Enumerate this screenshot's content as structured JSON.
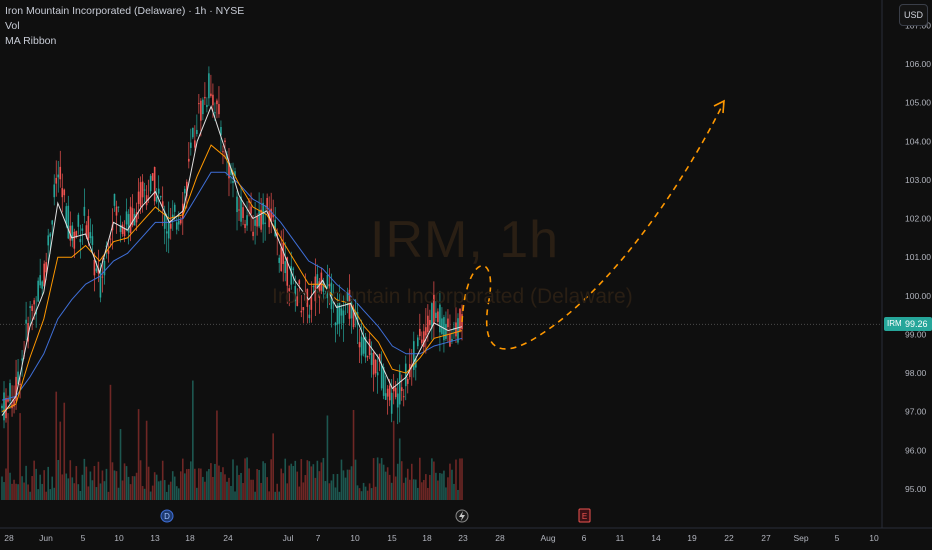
{
  "legend": {
    "title": "Iron Mountain Incorporated (Delaware) · 1h · NYSE",
    "volume": "Vol",
    "ma": "MA Ribbon"
  },
  "currency": "USD",
  "watermark": {
    "symbol": "IRM, 1h",
    "name": "Iron Mountain Incorporated (Delaware)"
  },
  "last_price": {
    "symbol": "IRM",
    "value": "99.26"
  },
  "colors": {
    "up": "#26a69a",
    "down": "#ef5350",
    "ma_fast": "#e0e0e0",
    "ma_mid": "#ff9800",
    "ma_slow": "#3f6fd8",
    "projection": "#ff9800"
  },
  "icons": {
    "dividend_marker": "D",
    "earnings_marker": "E",
    "flash_marker": "lightning-icon"
  },
  "chart_data": {
    "type": "line",
    "ylim": [
      94.6,
      107.2
    ],
    "y_ticks": [
      "95.00",
      "96.00",
      "97.00",
      "98.00",
      "99.00",
      "100.00",
      "101.00",
      "102.00",
      "103.00",
      "104.00",
      "105.00",
      "106.00",
      "107.00"
    ],
    "y_tick_values": [
      95,
      96,
      97,
      98,
      99,
      100,
      101,
      102,
      103,
      104,
      105,
      106,
      107
    ],
    "x_ticks": [
      "28",
      "Jun",
      "5",
      "10",
      "13",
      "18",
      "24",
      "Jul",
      "7",
      "10",
      "15",
      "18",
      "23",
      "28",
      "Aug",
      "6",
      "11",
      "14",
      "19",
      "22",
      "27",
      "Sep",
      "5",
      "10"
    ],
    "price_path": [
      [
        "May 28",
        97.1
      ],
      [
        "May 30",
        97.5
      ],
      [
        "Jun 2",
        99.5
      ],
      [
        "Jun 4",
        100.5
      ],
      [
        "Jun 5",
        103.2
      ],
      [
        "Jun 6",
        101.5
      ],
      [
        "Jun 9",
        102.0
      ],
      [
        "Jun 10",
        100.2
      ],
      [
        "Jun 12",
        102.3
      ],
      [
        "Jun 13",
        101.8
      ],
      [
        "Jun 16",
        102.6
      ],
      [
        "Jun 17",
        102.9
      ],
      [
        "Jun 18",
        101.6
      ],
      [
        "Jun 20",
        102.4
      ],
      [
        "Jun 23",
        104.6
      ],
      [
        "Jun 24",
        105.5
      ],
      [
        "Jun 25",
        103.8
      ],
      [
        "Jun 27",
        102.4
      ],
      [
        "Jun 30",
        101.9
      ],
      [
        "Jul 1",
        102.3
      ],
      [
        "Jul 2",
        101.1
      ],
      [
        "Jul 3",
        100.2
      ],
      [
        "Jul 7",
        99.7
      ],
      [
        "Jul 8",
        100.6
      ],
      [
        "Jul 9",
        99.5
      ],
      [
        "Jul 10",
        99.8
      ],
      [
        "Jul 11",
        98.6
      ],
      [
        "Jul 14",
        98.2
      ],
      [
        "Jul 15",
        97.3
      ],
      [
        "Jul 16",
        97.9
      ],
      [
        "Jul 17",
        98.8
      ],
      [
        "Jul 18",
        99.6
      ],
      [
        "Jul 21",
        99.1
      ],
      [
        "Jul 22",
        99.26
      ]
    ],
    "ma_fast": [
      [
        0,
        96.9
      ],
      [
        1,
        97.4
      ],
      [
        2,
        99.2
      ],
      [
        3,
        100.1
      ],
      [
        4,
        102.4
      ],
      [
        5,
        101.5
      ],
      [
        6,
        101.6
      ],
      [
        7,
        100.6
      ],
      [
        8,
        101.9
      ],
      [
        9,
        101.7
      ],
      [
        10,
        102.3
      ],
      [
        11,
        102.7
      ],
      [
        12,
        101.9
      ],
      [
        13,
        102.2
      ],
      [
        14,
        104.0
      ],
      [
        15,
        104.9
      ],
      [
        16,
        103.8
      ],
      [
        17,
        102.6
      ],
      [
        18,
        102.0
      ],
      [
        19,
        102.2
      ],
      [
        20,
        101.3
      ],
      [
        21,
        100.4
      ],
      [
        22,
        99.9
      ],
      [
        23,
        100.4
      ],
      [
        24,
        99.7
      ],
      [
        25,
        99.8
      ],
      [
        26,
        98.9
      ],
      [
        27,
        98.4
      ],
      [
        28,
        97.6
      ],
      [
        29,
        97.9
      ],
      [
        30,
        98.6
      ],
      [
        31,
        99.3
      ],
      [
        32,
        99.1
      ],
      [
        33,
        99.2
      ]
    ],
    "ma_mid": [
      [
        0,
        97.0
      ],
      [
        1,
        97.2
      ],
      [
        2,
        98.4
      ],
      [
        3,
        99.4
      ],
      [
        4,
        101.0
      ],
      [
        5,
        101.0
      ],
      [
        6,
        101.3
      ],
      [
        7,
        100.9
      ],
      [
        8,
        101.4
      ],
      [
        9,
        101.5
      ],
      [
        10,
        101.9
      ],
      [
        11,
        102.3
      ],
      [
        12,
        102.0
      ],
      [
        13,
        102.1
      ],
      [
        14,
        103.1
      ],
      [
        15,
        103.9
      ],
      [
        16,
        103.6
      ],
      [
        17,
        102.9
      ],
      [
        18,
        102.3
      ],
      [
        19,
        102.1
      ],
      [
        20,
        101.5
      ],
      [
        21,
        100.9
      ],
      [
        22,
        100.3
      ],
      [
        23,
        100.3
      ],
      [
        24,
        99.9
      ],
      [
        25,
        99.8
      ],
      [
        26,
        99.2
      ],
      [
        27,
        98.8
      ],
      [
        28,
        98.1
      ],
      [
        29,
        98.0
      ],
      [
        30,
        98.4
      ],
      [
        31,
        98.9
      ],
      [
        32,
        99.0
      ],
      [
        33,
        99.1
      ]
    ],
    "ma_slow": [
      [
        0,
        97.3
      ],
      [
        1,
        97.4
      ],
      [
        2,
        97.9
      ],
      [
        3,
        98.5
      ],
      [
        4,
        99.4
      ],
      [
        5,
        99.9
      ],
      [
        6,
        100.3
      ],
      [
        7,
        100.5
      ],
      [
        8,
        100.9
      ],
      [
        9,
        101.1
      ],
      [
        10,
        101.5
      ],
      [
        11,
        101.9
      ],
      [
        12,
        101.9
      ],
      [
        13,
        102.0
      ],
      [
        14,
        102.6
      ],
      [
        15,
        103.2
      ],
      [
        16,
        103.2
      ],
      [
        17,
        102.9
      ],
      [
        18,
        102.5
      ],
      [
        19,
        102.3
      ],
      [
        20,
        101.9
      ],
      [
        21,
        101.4
      ],
      [
        22,
        100.9
      ],
      [
        23,
        100.7
      ],
      [
        24,
        100.3
      ],
      [
        25,
        100.0
      ],
      [
        26,
        99.6
      ],
      [
        27,
        99.2
      ],
      [
        28,
        98.7
      ],
      [
        29,
        98.5
      ],
      [
        30,
        98.5
      ],
      [
        31,
        98.7
      ],
      [
        32,
        98.8
      ],
      [
        33,
        98.9
      ]
    ],
    "projection": [
      [
        "Jul 22",
        99.26
      ],
      [
        "Jul 24",
        100.8
      ],
      [
        "Jul 25",
        99.0
      ],
      [
        "Jul 28",
        98.5
      ],
      [
        "Aug 6",
        99.8
      ],
      [
        "Aug 14",
        101.2
      ],
      [
        "Aug 22",
        105.0
      ]
    ],
    "volume_note": "histogram at bottom, colors follow candle direction",
    "last_price": 99.26
  }
}
